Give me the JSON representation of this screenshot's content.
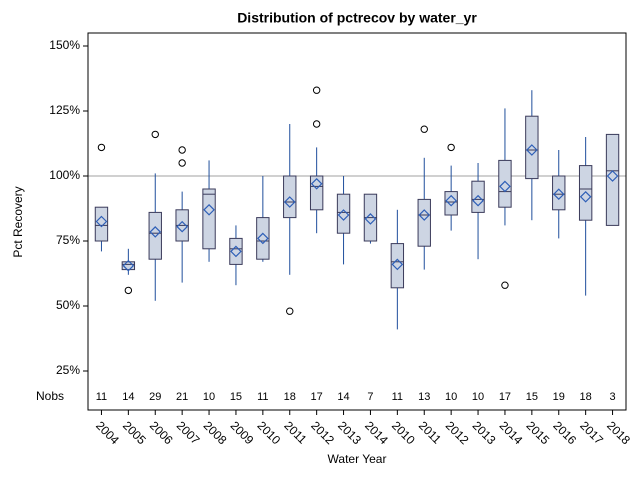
{
  "chart_data": {
    "type": "box",
    "title": "Distribution of pctrecov by water_yr",
    "x_label": "Water Year",
    "y_label": "Pct Recovery",
    "nobs_label": "Nobs",
    "categories": [
      "2004",
      "2005",
      "2006",
      "2007",
      "2008",
      "2009",
      "2010",
      "2011",
      "2012",
      "2013",
      "2014",
      "2010",
      "2011",
      "2012",
      "2013",
      "2014",
      "2015",
      "2016",
      "2017",
      "2018"
    ],
    "nobs": [
      11,
      14,
      29,
      21,
      10,
      15,
      11,
      18,
      17,
      14,
      7,
      11,
      13,
      10,
      10,
      17,
      15,
      19,
      18,
      3
    ],
    "boxes": [
      {
        "low": 71,
        "q1": 75,
        "median": 81,
        "q3": 88,
        "high": 88,
        "mean": 82.5,
        "outliers": [
          111
        ]
      },
      {
        "low": 62,
        "q1": 64,
        "median": 66,
        "q3": 67,
        "high": 72,
        "mean": 65.5,
        "outliers": [
          56
        ]
      },
      {
        "low": 52,
        "q1": 68,
        "median": 78,
        "q3": 86,
        "high": 101,
        "mean": 78.5,
        "outliers": [
          116
        ]
      },
      {
        "low": 59,
        "q1": 75,
        "median": 81,
        "q3": 87,
        "high": 94,
        "mean": 80.5,
        "outliers": [
          110,
          105
        ]
      },
      {
        "low": 67,
        "q1": 72,
        "median": 93,
        "q3": 95,
        "high": 106,
        "mean": 87,
        "outliers": []
      },
      {
        "low": 58,
        "q1": 66,
        "median": 72,
        "q3": 76,
        "high": 81,
        "mean": 71,
        "outliers": []
      },
      {
        "low": 67,
        "q1": 68,
        "median": 75,
        "q3": 84,
        "high": 100,
        "mean": 76,
        "outliers": []
      },
      {
        "low": 62,
        "q1": 84,
        "median": 90,
        "q3": 100,
        "high": 120,
        "mean": 90,
        "outliers": [
          48
        ]
      },
      {
        "low": 78,
        "q1": 87,
        "median": 96,
        "q3": 100,
        "high": 111,
        "mean": 97,
        "outliers": [
          133,
          120
        ]
      },
      {
        "low": 66,
        "q1": 78,
        "median": 86,
        "q3": 93,
        "high": 100,
        "mean": 85,
        "outliers": []
      },
      {
        "low": 74,
        "q1": 75,
        "median": 84,
        "q3": 93,
        "high": 93,
        "mean": 83.5,
        "outliers": []
      },
      {
        "low": 41,
        "q1": 57,
        "median": 67,
        "q3": 74,
        "high": 87,
        "mean": 66,
        "outliers": []
      },
      {
        "low": 64,
        "q1": 73,
        "median": 85,
        "q3": 91,
        "high": 107,
        "mean": 85,
        "outliers": [
          118
        ]
      },
      {
        "low": 79,
        "q1": 85,
        "median": 90,
        "q3": 94,
        "high": 104,
        "mean": 90.5,
        "outliers": [
          111
        ]
      },
      {
        "low": 68,
        "q1": 86,
        "median": 91,
        "q3": 98,
        "high": 105,
        "mean": 90.5,
        "outliers": []
      },
      {
        "low": 81,
        "q1": 88,
        "median": 94,
        "q3": 106,
        "high": 126,
        "mean": 96,
        "outliers": [
          58
        ]
      },
      {
        "low": 83,
        "q1": 99,
        "median": 110,
        "q3": 123,
        "high": 133,
        "mean": 110,
        "outliers": []
      },
      {
        "low": 76,
        "q1": 87,
        "median": 93,
        "q3": 100,
        "high": 110,
        "mean": 93,
        "outliers": []
      },
      {
        "low": 54,
        "q1": 83,
        "median": 95,
        "q3": 104,
        "high": 115,
        "mean": 92,
        "outliers": []
      },
      {
        "low": 81,
        "q1": 81,
        "median": 102,
        "q3": 116,
        "high": 116,
        "mean": 100,
        "outliers": []
      }
    ],
    "reference_line": 100,
    "ylim": [
      10,
      155
    ],
    "yticks": [
      {
        "value": 25,
        "label": "25%"
      },
      {
        "value": 50,
        "label": "50%"
      },
      {
        "value": 75,
        "label": "75%"
      },
      {
        "value": 100,
        "label": "100%"
      },
      {
        "value": 125,
        "label": "125%"
      },
      {
        "value": 150,
        "label": "150%"
      }
    ],
    "box_fill": "#cdd5e3",
    "box_edge": "#3a3a5a",
    "whisker_color": "#1f4e9c",
    "mean_color": "#2e5fb7",
    "reference_color": "#a0a0a0"
  }
}
